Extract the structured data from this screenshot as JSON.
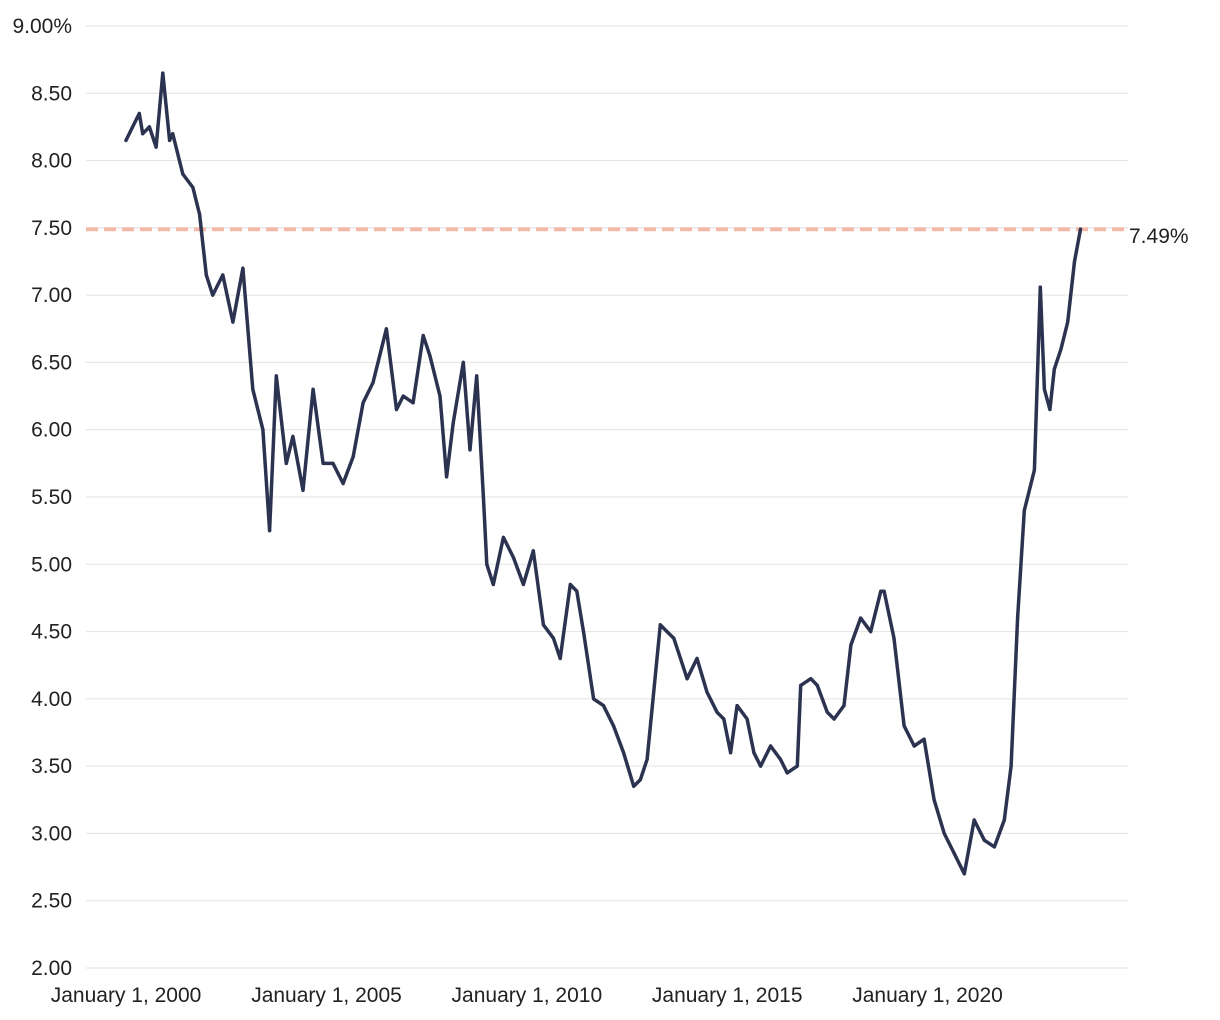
{
  "chart_data": {
    "type": "line",
    "title": "",
    "xlabel": "",
    "ylabel": "",
    "y_unit": "%",
    "ylim": [
      2.0,
      9.0
    ],
    "y_ticks": [
      "9.00%",
      "8.50",
      "8.00",
      "7.50",
      "7.00",
      "6.50",
      "6.00",
      "5.50",
      "5.00",
      "4.50",
      "4.00",
      "3.50",
      "3.00",
      "2.50",
      "2.00"
    ],
    "x_ticks": [
      "January 1, 2000",
      "January 1, 2005",
      "January 1, 2010",
      "January 1, 2015",
      "January 1, 2020"
    ],
    "xlim": [
      "1999-01-01",
      "2025-01-01"
    ],
    "grid": "horizontal",
    "colors": {
      "line": "#2b3350",
      "reference": "#f4b9a8",
      "grid": "#e2e2e2"
    },
    "reference_line": {
      "value": 7.49,
      "label": "7.49%",
      "style": "dashed"
    },
    "series": [
      {
        "x": [
          "2000-01-01",
          "2000-03-01",
          "2000-05-01",
          "2000-06-01",
          "2000-08-01",
          "2000-10-01",
          "2000-12-01",
          "2001-02-01",
          "2001-03-01",
          "2001-06-01",
          "2001-09-01",
          "2001-11-01",
          "2002-01-01",
          "2002-03-01",
          "2002-06-01",
          "2002-09-01",
          "2002-12-01",
          "2003-03-01",
          "2003-06-01",
          "2003-08-01",
          "2003-10-01",
          "2004-01-01",
          "2004-03-01",
          "2004-06-01",
          "2004-09-01",
          "2004-12-01",
          "2005-03-01",
          "2005-06-01",
          "2005-09-01",
          "2005-12-01",
          "2006-03-01",
          "2006-07-01",
          "2006-10-01",
          "2006-12-01",
          "2007-03-01",
          "2007-06-01",
          "2007-08-01",
          "2007-11-01",
          "2008-01-01",
          "2008-03-01",
          "2008-06-01",
          "2008-08-01",
          "2008-10-01",
          "2008-12-01",
          "2009-01-01",
          "2009-03-01",
          "2009-06-01",
          "2009-09-01",
          "2009-12-01",
          "2010-03-01",
          "2010-06-01",
          "2010-09-01",
          "2010-11-01",
          "2011-02-01",
          "2011-04-01",
          "2011-06-01",
          "2011-09-01",
          "2011-12-01",
          "2012-03-01",
          "2012-06-01",
          "2012-09-01",
          "2012-11-01",
          "2013-01-01",
          "2013-05-01",
          "2013-07-01",
          "2013-09-01",
          "2013-11-01",
          "2014-01-01",
          "2014-04-01",
          "2014-07-01",
          "2014-10-01",
          "2014-12-01",
          "2015-02-01",
          "2015-04-01",
          "2015-07-01",
          "2015-09-01",
          "2015-11-01",
          "2016-02-01",
          "2016-05-01",
          "2016-07-01",
          "2016-10-01",
          "2016-11-01",
          "2017-02-01",
          "2017-04-01",
          "2017-07-01",
          "2017-09-01",
          "2017-12-01",
          "2018-02-01",
          "2018-05-01",
          "2018-08-01",
          "2018-11-01",
          "2018-12-01",
          "2019-03-01",
          "2019-06-01",
          "2019-09-01",
          "2019-12-01",
          "2020-03-01",
          "2020-06-01",
          "2020-09-01",
          "2020-12-01",
          "2021-03-01",
          "2021-06-01",
          "2021-09-01",
          "2021-12-01",
          "2022-02-01",
          "2022-04-01",
          "2022-06-01",
          "2022-09-01",
          "2022-10-25",
          "2022-12-01",
          "2023-01-20",
          "2023-03-01",
          "2023-05-01",
          "2023-07-01",
          "2023-09-01",
          "2023-10-26"
        ],
        "values": [
          8.15,
          8.25,
          8.35,
          8.2,
          8.25,
          8.1,
          8.65,
          8.15,
          8.2,
          7.9,
          7.8,
          7.6,
          7.15,
          7.0,
          7.15,
          6.8,
          7.2,
          6.3,
          6.0,
          5.25,
          6.4,
          5.75,
          5.95,
          5.55,
          6.3,
          5.75,
          5.75,
          5.6,
          5.8,
          6.2,
          6.35,
          6.75,
          6.15,
          6.25,
          6.2,
          6.7,
          6.55,
          6.25,
          5.65,
          6.05,
          6.5,
          5.85,
          6.4,
          5.5,
          5.0,
          4.85,
          5.2,
          5.05,
          4.85,
          5.1,
          4.55,
          4.45,
          4.3,
          4.85,
          4.8,
          4.5,
          4.0,
          3.95,
          3.8,
          3.6,
          3.35,
          3.4,
          3.55,
          4.55,
          4.5,
          4.45,
          4.3,
          4.15,
          4.3,
          4.05,
          3.9,
          3.85,
          3.6,
          3.95,
          3.85,
          3.6,
          3.5,
          3.65,
          3.55,
          3.45,
          3.5,
          4.1,
          4.15,
          4.1,
          3.9,
          3.85,
          3.95,
          4.4,
          4.6,
          4.5,
          4.8,
          4.8,
          4.45,
          3.8,
          3.65,
          3.7,
          3.25,
          3.0,
          2.85,
          2.7,
          3.1,
          2.95,
          2.9,
          3.1,
          3.5,
          4.6,
          5.4,
          5.7,
          7.06,
          6.3,
          6.15,
          6.45,
          6.6,
          6.8,
          7.25,
          7.49
        ]
      }
    ]
  }
}
